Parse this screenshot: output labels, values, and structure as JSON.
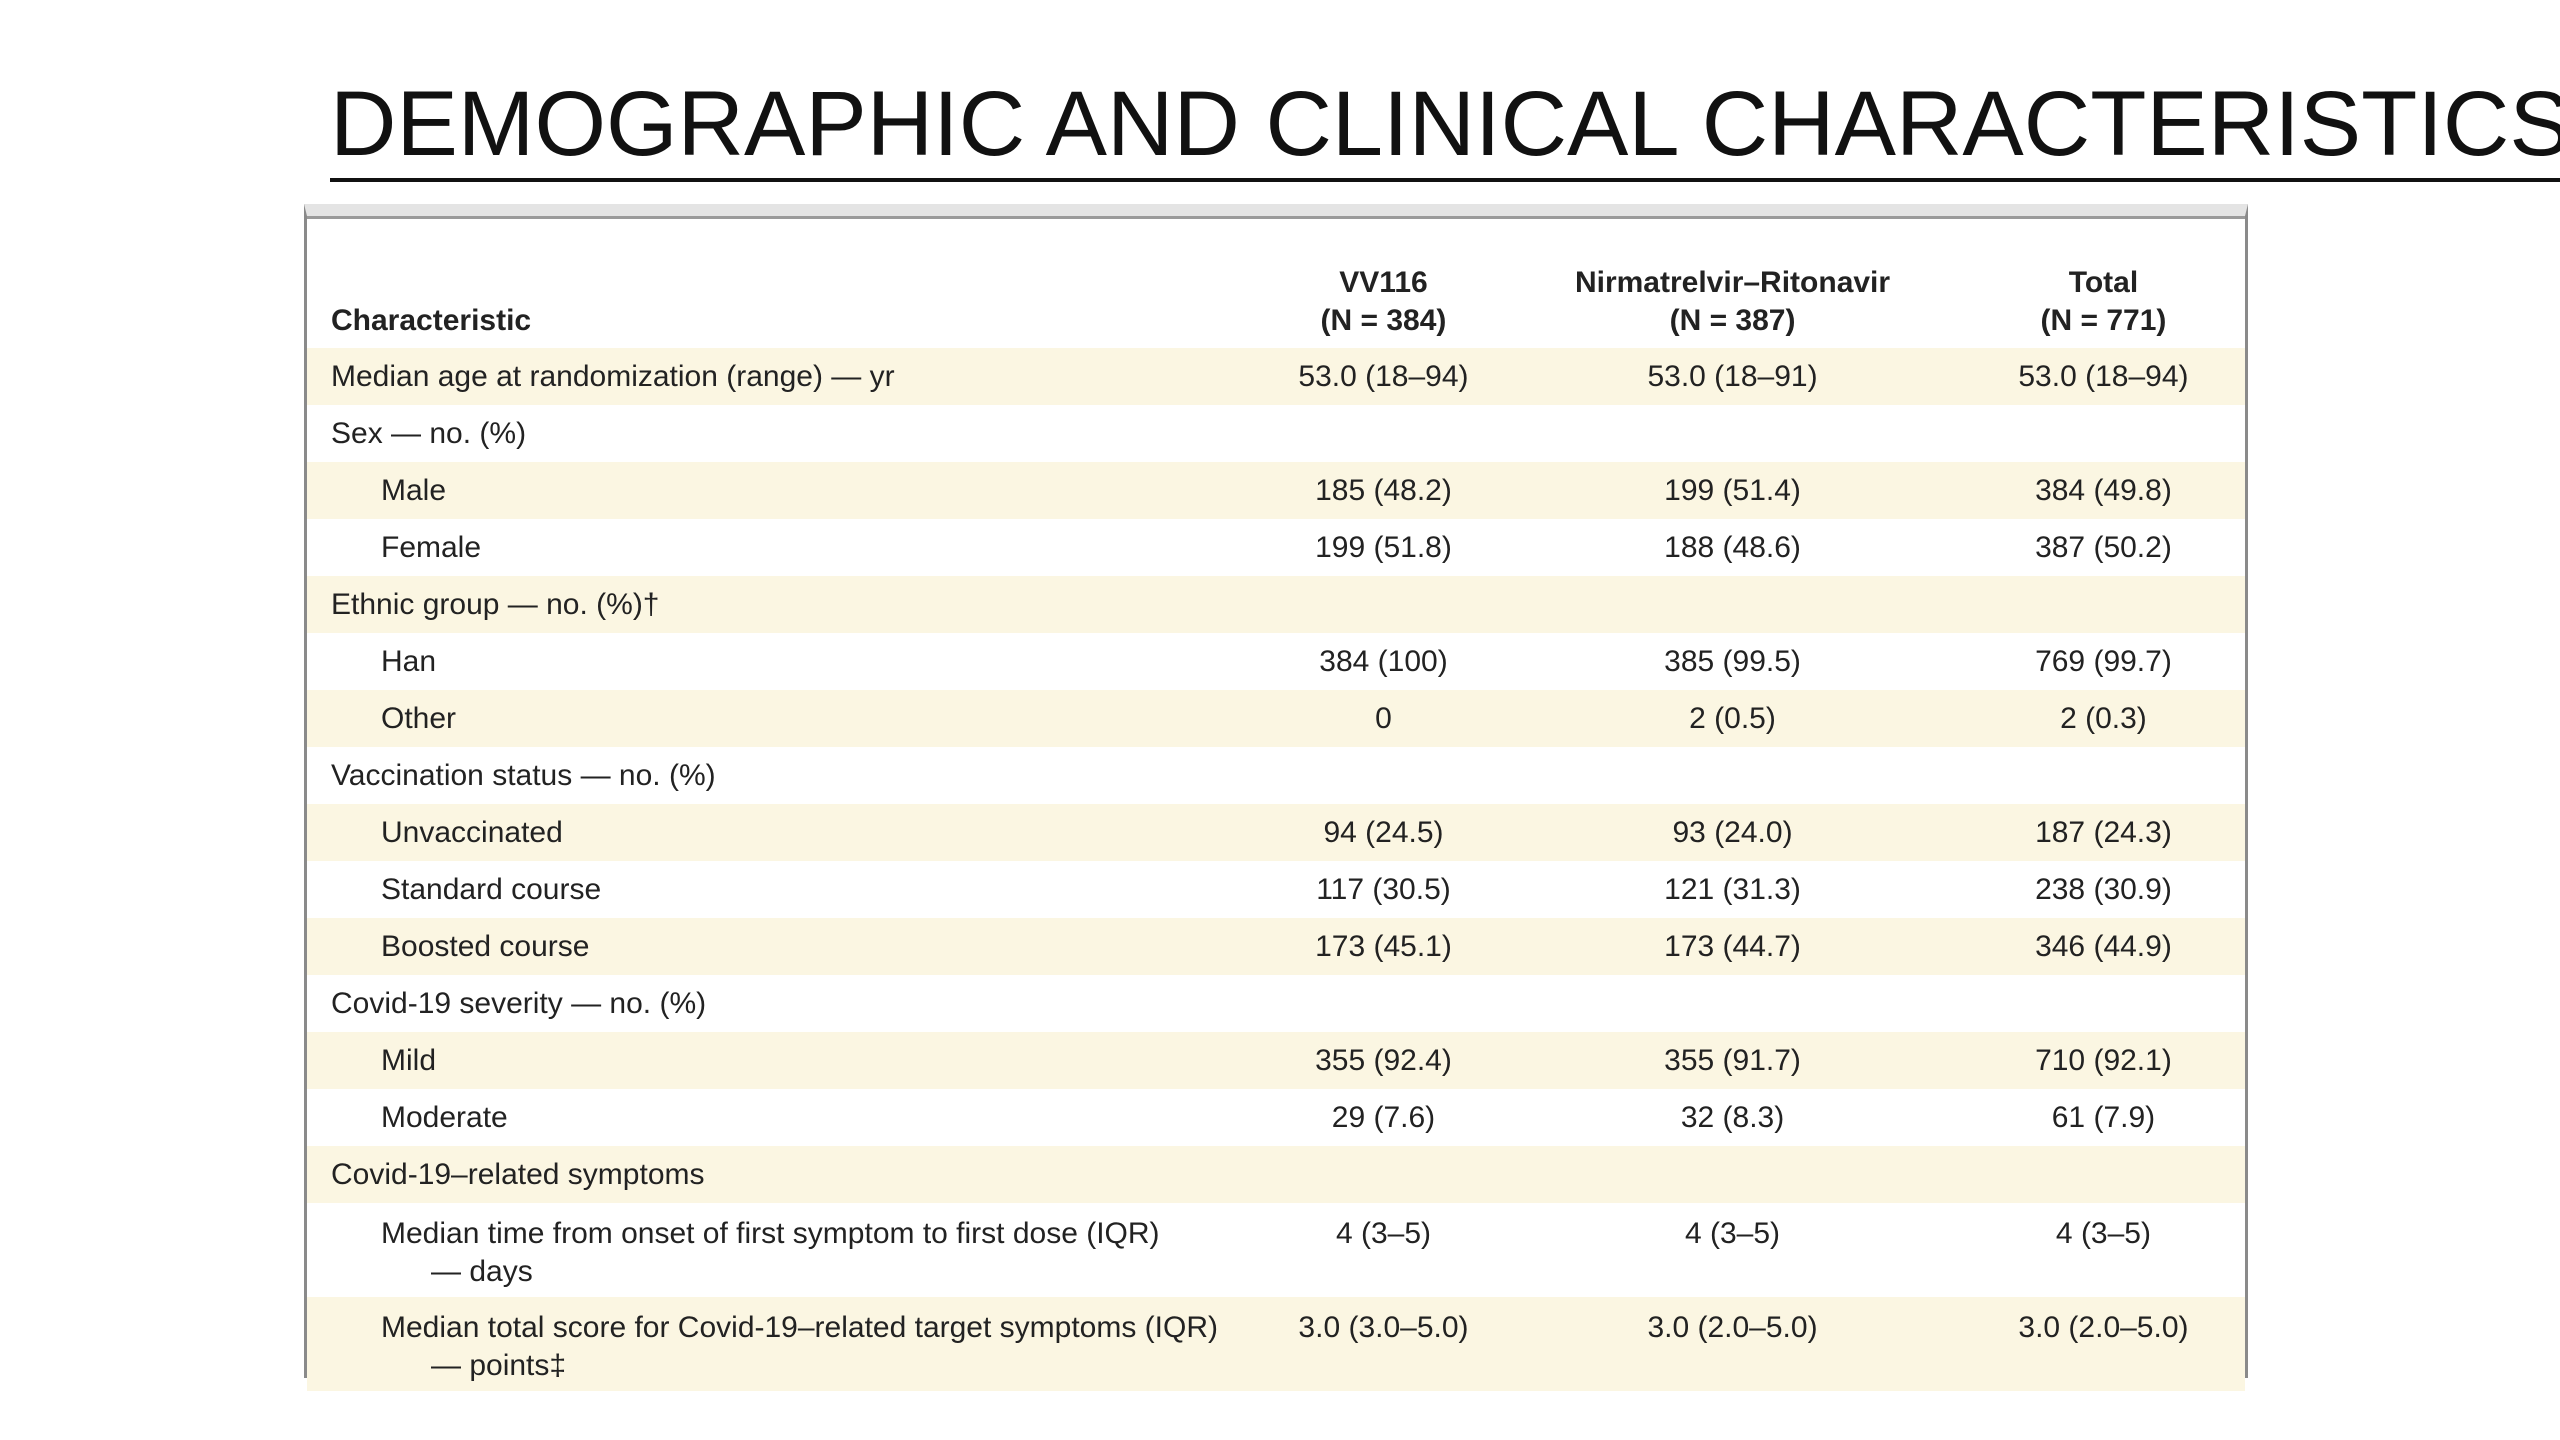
{
  "title": "DEMOGRAPHIC AND CLINICAL CHARACTERISTICS",
  "table": {
    "headers": {
      "characteristic": "Characteristic",
      "col1_name": "VV116",
      "col1_n": "(N = 384)",
      "col2_name": "Nirmatrelvir–Ritonavir",
      "col2_n": "(N = 387)",
      "col3_name": "Total",
      "col3_n": "(N = 771)"
    },
    "rows": [
      {
        "label": "Median age at randomization (range) — yr",
        "vv116": "53.0 (18–94)",
        "nr": "53.0 (18–91)",
        "total": "53.0 (18–94)"
      },
      {
        "label": "Sex — no. (%)",
        "vv116": "",
        "nr": "",
        "total": ""
      },
      {
        "label": "Male",
        "vv116": "185 (48.2)",
        "nr": "199 (51.4)",
        "total": "384 (49.8)"
      },
      {
        "label": "Female",
        "vv116": "199 (51.8)",
        "nr": "188 (48.6)",
        "total": "387 (50.2)"
      },
      {
        "label": "Ethnic group — no. (%)†",
        "vv116": "",
        "nr": "",
        "total": ""
      },
      {
        "label": "Han",
        "vv116": "384 (100)",
        "nr": "385 (99.5)",
        "total": "769 (99.7)"
      },
      {
        "label": "Other",
        "vv116": "0",
        "nr": "2 (0.5)",
        "total": "2 (0.3)"
      },
      {
        "label": "Vaccination status — no. (%)",
        "vv116": "",
        "nr": "",
        "total": ""
      },
      {
        "label": "Unvaccinated",
        "vv116": "94 (24.5)",
        "nr": "93 (24.0)",
        "total": "187 (24.3)"
      },
      {
        "label": "Standard course",
        "vv116": "117 (30.5)",
        "nr": "121 (31.3)",
        "total": "238 (30.9)"
      },
      {
        "label": "Boosted course",
        "vv116": "173 (45.1)",
        "nr": "173 (44.7)",
        "total": "346 (44.9)"
      },
      {
        "label": "Covid-19 severity — no. (%)",
        "vv116": "",
        "nr": "",
        "total": ""
      },
      {
        "label": "Mild",
        "vv116": "355 (92.4)",
        "nr": "355 (91.7)",
        "total": "710 (92.1)"
      },
      {
        "label": "Moderate",
        "vv116": "29 (7.6)",
        "nr": "32 (8.3)",
        "total": "61 (7.9)"
      },
      {
        "label": "Covid-19–related symptoms",
        "vv116": "",
        "nr": "",
        "total": ""
      },
      {
        "label": "Median time from onset of first symptom to first dose (IQR)",
        "label_cont": "— days",
        "vv116": "4 (3–5)",
        "nr": "4 (3–5)",
        "total": "4 (3–5)"
      },
      {
        "label": "Median total score for Covid-19–related target symptoms (IQR)",
        "label_cont": "— points‡",
        "vv116": "3.0 (3.0–5.0)",
        "nr": "3.0 (2.0–5.0)",
        "total": "3.0 (2.0–5.0)"
      }
    ]
  }
}
